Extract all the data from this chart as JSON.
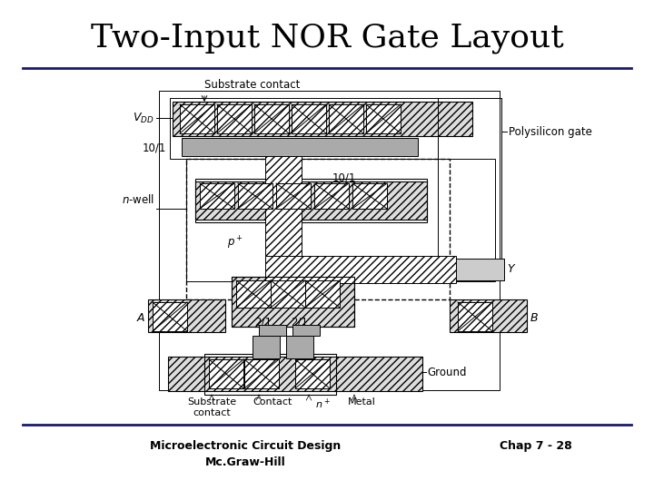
{
  "title": "Two-Input NOR Gate Layout",
  "title_fontsize": 26,
  "title_font": "serif",
  "footer_left": "Microelectronic Circuit Design\nMc.Graw-Hill",
  "footer_right": "Chap 7 - 28",
  "footer_fontsize": 9,
  "bg_color": "#ffffff",
  "line_color": "#1a1a6e",
  "line_width": 2.0,
  "gray_fill": "#aaaaaa",
  "light_gray": "#cccccc",
  "dark_gray": "#888888"
}
